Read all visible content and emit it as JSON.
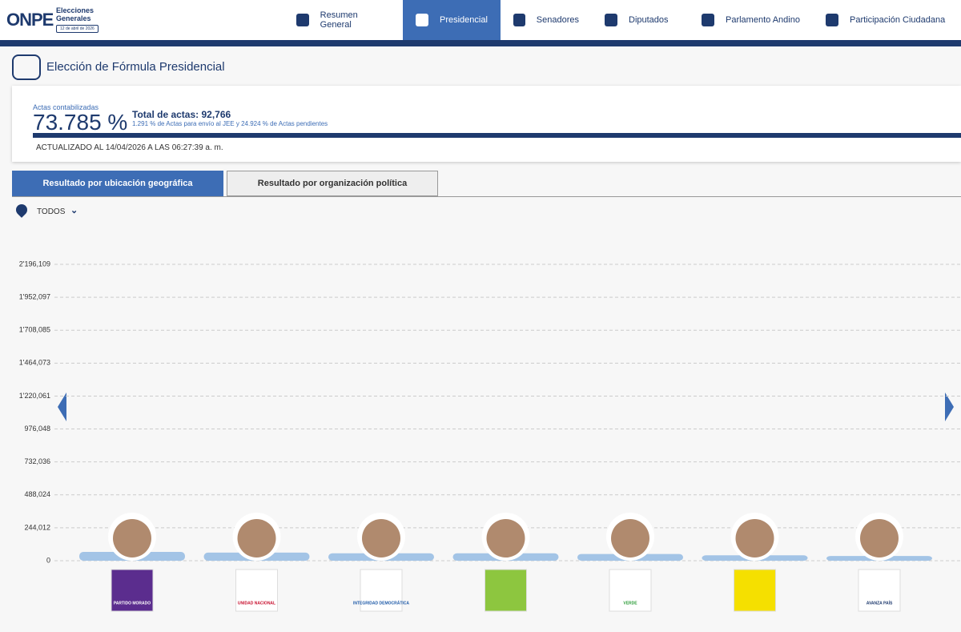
{
  "header": {
    "logo": "ONPE",
    "brand": "Elecciones Generales",
    "date": "12 de abril de 2026"
  },
  "nav": [
    "Resumen General",
    "Presidencial",
    "Senadores",
    "Diputados",
    "Parlamento Andino",
    "Participación Ciudadana"
  ],
  "page_title": "Elección de Fórmula Presidencial",
  "summary": {
    "label": "Actas contabilizadas",
    "percent": "73.785 %",
    "total": "Total de actas: 92,766",
    "detail": "1.291 % de Actas para envío al JEE y 24.924 % de Actas pendientes",
    "updated": "ACTUALIZADO AL 14/04/2026 A LAS 06:27:39 a. m."
  },
  "tabs": [
    "Resultado por ubicación geográfica",
    "Resultado por organización política"
  ],
  "filter": "TODOS",
  "chart_data": {
    "type": "bar",
    "categories": [
      "PARTIDO MORADO",
      "UNIDAD NACIONAL",
      "INTEGRIDAD DEMOCRÁTICA",
      null,
      "VERDE",
      null,
      "AVANZA PAÍS"
    ],
    "values": [
      65000,
      60000,
      55000,
      55000,
      50000,
      40000,
      35000
    ],
    "color": "#a3c4e6",
    "ylim": [
      0,
      2196109
    ],
    "yticks": [
      0,
      {
        "value": 244012,
        "label": "244,012"
      },
      {
        "value": 488024,
        "label": "488,024"
      },
      {
        "value": 732036,
        "label": "732,036"
      },
      {
        "value": 976048,
        "label": "976,048"
      },
      {
        "value": 1220061,
        "label": "1'220,061"
      },
      {
        "value": 1464073,
        "label": "1'464,073"
      },
      {
        "value": 1708085,
        "label": "1'708,085"
      },
      {
        "value": 1952097,
        "label": "1'952,097"
      },
      {
        "value": 2196109,
        "label": "2'196,109"
      }
    ],
    "grid": true
  }
}
